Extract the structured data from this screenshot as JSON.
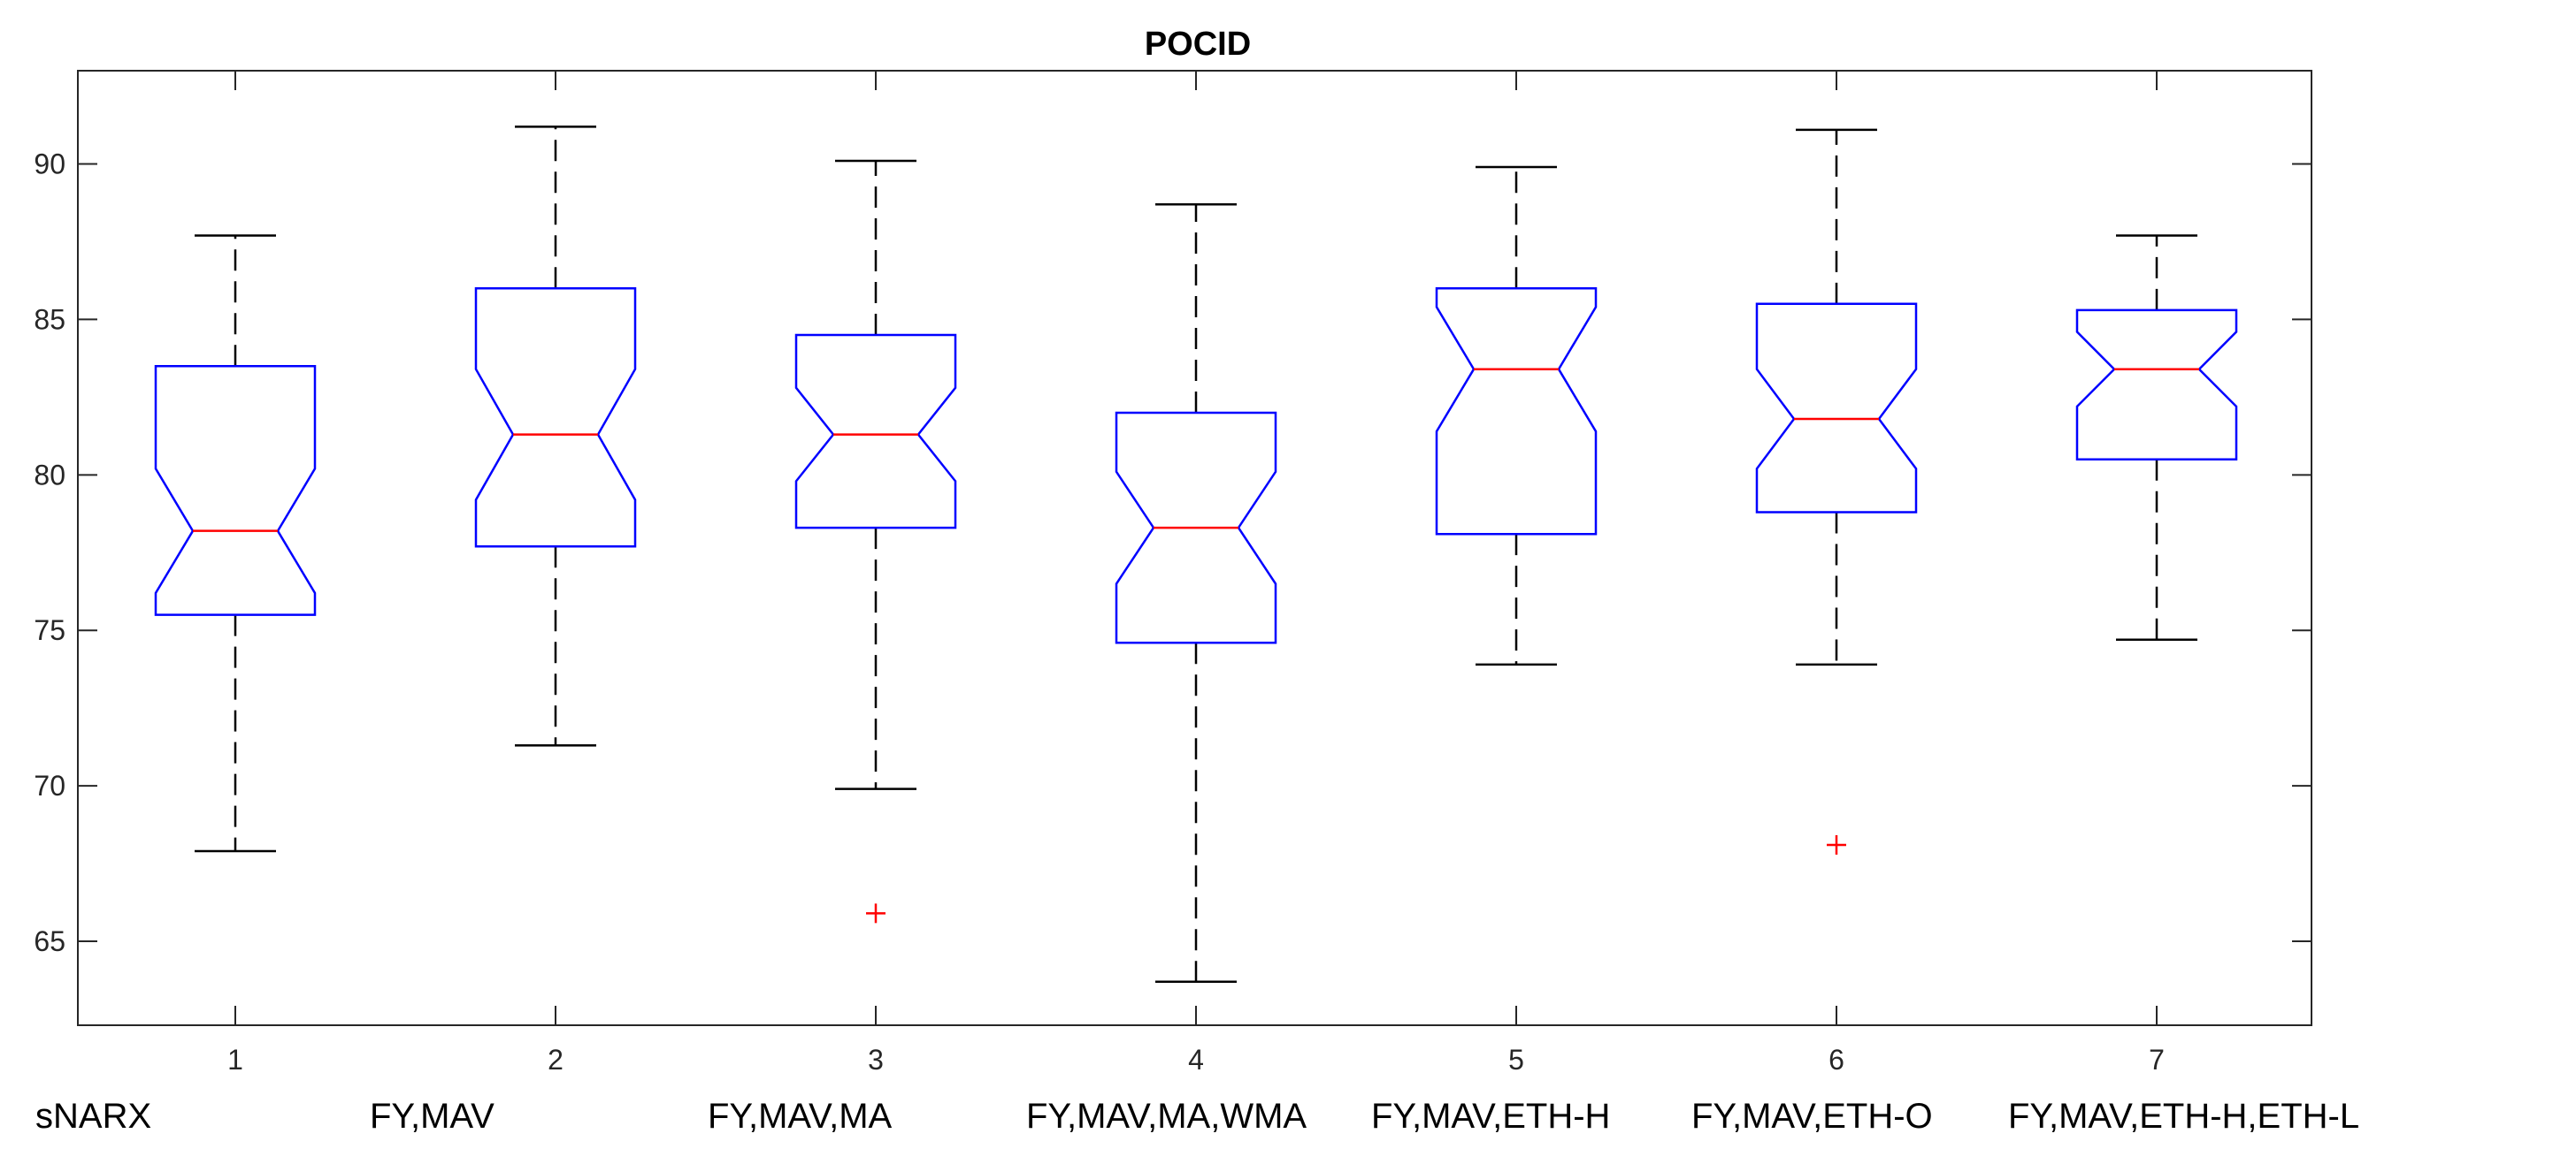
{
  "chart_data": {
    "type": "boxplot",
    "title": "POCID",
    "xlabel": "",
    "ylabel": "",
    "ylim": [
      62.3,
      93
    ],
    "yticks": [
      65,
      70,
      75,
      80,
      85,
      90
    ],
    "x_tick_labels": [
      "1",
      "2",
      "3",
      "4",
      "5",
      "6",
      "7"
    ],
    "group_labels": [
      "sNARX",
      "FY,MAV",
      "FY,MAV,MA",
      "FY,MAV,MA,WMA",
      "FY,MAV,ETH-H",
      "FY,MAV,ETH-O",
      "FY,MAV,ETH-H,ETH-L"
    ],
    "notched": true,
    "colors": {
      "box": "#0000ff",
      "median": "#ff0000",
      "whisker": "#000000",
      "outlier": "#ff0000",
      "axis": "#262626"
    },
    "boxes": [
      {
        "position": 1,
        "q1": 75.5,
        "median": 78.2,
        "q3": 83.5,
        "notch_low": 76.2,
        "notch_high": 80.2,
        "whisker_low": 67.9,
        "whisker_high": 87.7,
        "outliers": []
      },
      {
        "position": 2,
        "q1": 77.7,
        "median": 81.3,
        "q3": 86.0,
        "notch_low": 79.2,
        "notch_high": 83.4,
        "whisker_low": 71.3,
        "whisker_high": 91.2,
        "outliers": []
      },
      {
        "position": 3,
        "q1": 78.3,
        "median": 81.3,
        "q3": 84.5,
        "notch_low": 79.8,
        "notch_high": 82.8,
        "whisker_low": 69.9,
        "whisker_high": 90.1,
        "outliers": [
          65.9
        ]
      },
      {
        "position": 4,
        "q1": 74.6,
        "median": 78.3,
        "q3": 82.0,
        "notch_low": 76.5,
        "notch_high": 80.1,
        "whisker_low": 63.7,
        "whisker_high": 88.7,
        "outliers": []
      },
      {
        "position": 5,
        "q1": 78.1,
        "median": 83.4,
        "q3": 86.0,
        "notch_low": 81.4,
        "notch_high": 85.4,
        "whisker_low": 73.9,
        "whisker_high": 89.9,
        "outliers": []
      },
      {
        "position": 6,
        "q1": 78.8,
        "median": 81.8,
        "q3": 85.5,
        "notch_low": 80.2,
        "notch_high": 83.4,
        "whisker_low": 73.9,
        "whisker_high": 91.1,
        "outliers": [
          68.1
        ]
      },
      {
        "position": 7,
        "q1": 80.5,
        "median": 83.4,
        "q3": 85.3,
        "notch_low": 82.2,
        "notch_high": 84.6,
        "whisker_low": 74.7,
        "whisker_high": 87.7,
        "outliers": []
      }
    ]
  }
}
